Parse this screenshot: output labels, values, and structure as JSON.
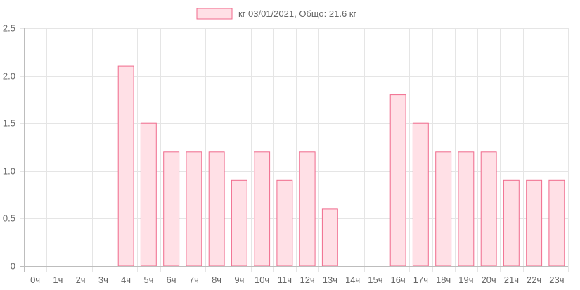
{
  "chart_data": {
    "type": "bar",
    "title": "",
    "legend": {
      "label": "кг 03/01/2021, Общо: 21.6 кг",
      "position": "top-center"
    },
    "categories": [
      "0ч",
      "1ч",
      "2ч",
      "3ч",
      "4ч",
      "5ч",
      "6ч",
      "7ч",
      "8ч",
      "9ч",
      "10ч",
      "11ч",
      "12ч",
      "13ч",
      "14ч",
      "15ч",
      "16ч",
      "17ч",
      "18ч",
      "19ч",
      "20ч",
      "21ч",
      "22ч",
      "23ч"
    ],
    "series": [
      {
        "name": "кг 03/01/2021, Общо: 21.6 кг",
        "values": [
          0,
          0,
          0,
          0,
          2.1,
          1.5,
          1.2,
          1.2,
          1.2,
          0.9,
          1.2,
          0.9,
          1.2,
          0.6,
          0,
          0,
          1.8,
          1.5,
          1.2,
          1.2,
          1.2,
          0.9,
          0.9,
          0.9
        ]
      }
    ],
    "y_ticks": [
      "0",
      "0.5",
      "1.0",
      "1.5",
      "2.0",
      "2.5"
    ],
    "ylim": [
      0,
      2.5
    ],
    "grid": true,
    "colors": {
      "bar_fill": "#ffe0e6",
      "bar_border": "#f06a8c",
      "grid": "#e5e5e5",
      "axis": "#bdbdbd"
    }
  }
}
